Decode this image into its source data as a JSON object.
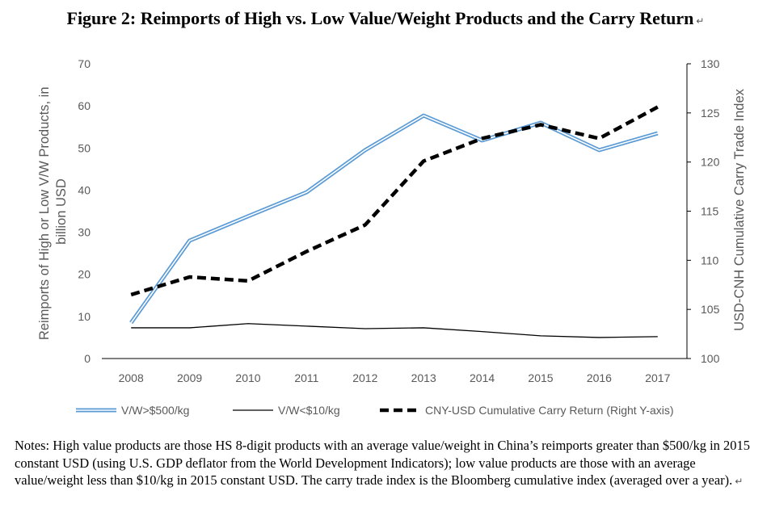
{
  "title": "Figure 2: Reimports of High vs. Low Value/Weight Products and the Carry Return",
  "paragraph_mark": "↵",
  "chart_data": {
    "type": "line",
    "x": [
      "2008",
      "2009",
      "2010",
      "2011",
      "2012",
      "2013",
      "2014",
      "2015",
      "2016",
      "2017"
    ],
    "ylabel_left": "Reimports of High or Low V/W Products, in billion USD",
    "ylabel_left_lines": [
      "Reimports of High or Low V/W Products, in",
      "billion USD"
    ],
    "ylabel_right": "USD-CNH Cumulative Carry Trade Index",
    "ylim_left": [
      0,
      70
    ],
    "ylim_right": [
      100,
      130
    ],
    "yticks_left": [
      "0",
      "10",
      "20",
      "30",
      "40",
      "50",
      "60",
      "70"
    ],
    "yticks_right": [
      "100",
      "105",
      "110",
      "115",
      "120",
      "125",
      "130"
    ],
    "grid": false,
    "legend_position": "bottom",
    "series": [
      {
        "name": "V/W>$500/kg",
        "axis": "left",
        "style": "double",
        "color": "#5B9BD5",
        "values": [
          8.5,
          28,
          33.8,
          39.5,
          49.5,
          57.7,
          51.8,
          56,
          49.5,
          53.5
        ]
      },
      {
        "name": "V/W<$10/kg",
        "axis": "left",
        "style": "solid",
        "color": "#000000",
        "values": [
          7.3,
          7.3,
          8.3,
          7.7,
          7.1,
          7.3,
          6.4,
          5.4,
          5,
          5.2
        ]
      },
      {
        "name": "CNY-USD Cumulative Carry Return (Right Y-axis)",
        "axis": "right",
        "style": "dashed",
        "color": "#000000",
        "values": [
          106.5,
          108.3,
          107.9,
          110.9,
          113.6,
          120.1,
          122.4,
          123.8,
          122.4,
          125.6
        ]
      }
    ]
  },
  "notes": "Notes: High value products are those HS 8-digit products with an average value/weight in China’s reimports greater than $500/kg in 2015 constant USD (using U.S. GDP deflator from the World Development Indicators); low value products are those with an average value/weight less than $10/kg in 2015 constant USD. The carry trade index is the Bloomberg cumulative index (averaged over a year)."
}
